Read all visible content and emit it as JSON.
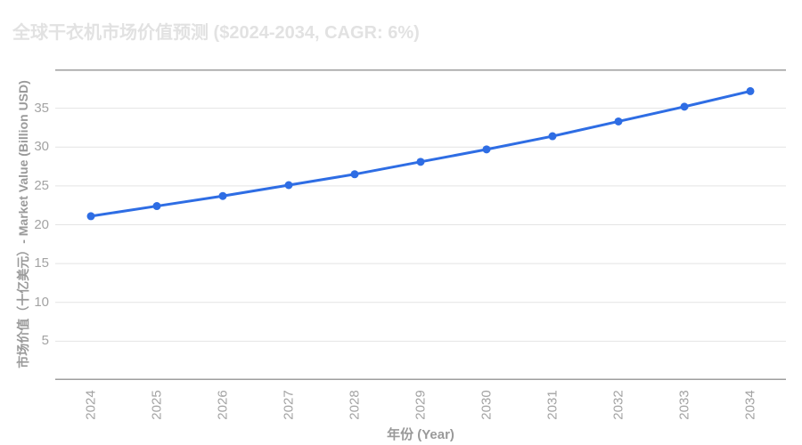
{
  "chart": {
    "title": "全球干衣机市场价值预测 ($2024-2034, CAGR: 6%)",
    "x_axis_title": "年份 (Year)",
    "y_axis_title": "市场价值（十亿美元）- Market Value (Billion USD)"
  },
  "chart_data": {
    "type": "line",
    "title": "全球干衣机市场价值预测 ($2024-2034, CAGR: 6%)",
    "xlabel": "年份 (Year)",
    "ylabel": "市场价值（十亿美元）- Market Value (Billion USD)",
    "categories": [
      "2024",
      "2025",
      "2026",
      "2027",
      "2028",
      "2029",
      "2030",
      "2031",
      "2032",
      "2033",
      "2034"
    ],
    "values": [
      21.1,
      22.4,
      23.7,
      25.1,
      26.5,
      28.1,
      29.7,
      31.4,
      33.3,
      35.2,
      37.2
    ],
    "ylim": [
      0,
      40
    ],
    "yticks": [
      5,
      10,
      15,
      20,
      25,
      30,
      35
    ],
    "grid": true,
    "legend": false,
    "colors": {
      "line": "#2e6de4",
      "marker": "#2e6de4",
      "grid": "#e4e4e4",
      "axis_line": "#9e9e9e",
      "tick_label": "#a3a3a3",
      "title": "#e2e2e2"
    }
  }
}
